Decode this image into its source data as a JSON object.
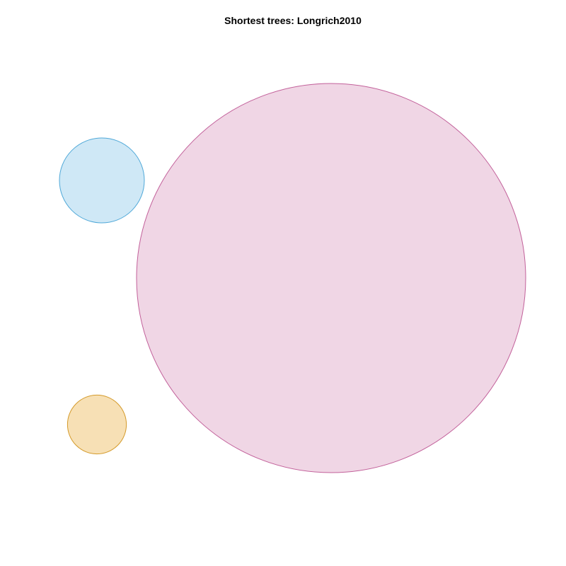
{
  "chart_data": {
    "type": "bubble",
    "title": "Shortest trees: Longrich2010",
    "xlabel": "",
    "ylabel": "",
    "grid": false,
    "legend": "none",
    "series": [
      {
        "size": 21,
        "color": "#D98EB5",
        "fill": "#F0D6E5",
        "stroke": "#C2609A"
      },
      {
        "size": 1,
        "color": "#7FC3E6",
        "fill": "#CFE8F6",
        "stroke": "#4FA8D8"
      },
      {
        "size": 0.48,
        "color": "#E8B24D",
        "fill": "#F7E0B5",
        "stroke": "#D49A2A"
      }
    ]
  }
}
